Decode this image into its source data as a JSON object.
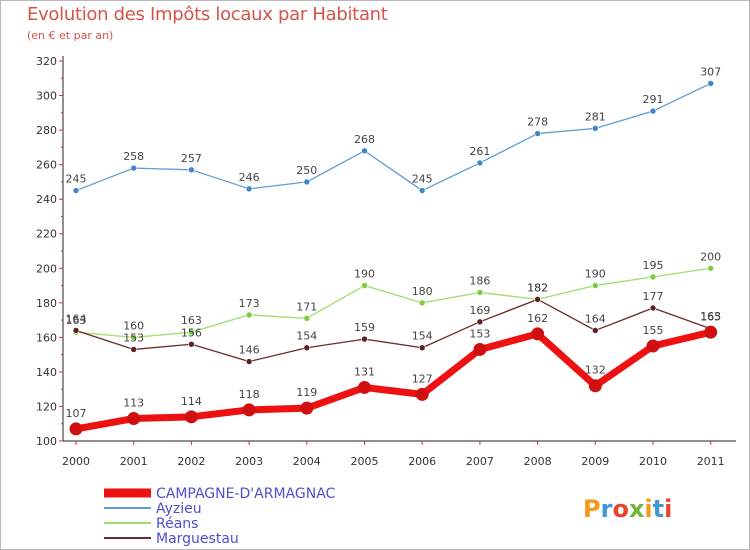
{
  "header": {
    "title": "Evolution des Impôts locaux par Habitant",
    "subtitle": "(en € et par an)"
  },
  "logo": {
    "text": "Proxiti",
    "colors": [
      "#f29a1a",
      "#3f98d8",
      "#e7452c",
      "#71b53b"
    ]
  },
  "chart_data": {
    "type": "line",
    "title": "Evolution des Impôts locaux par Habitant",
    "subtitle": "(en € et par an)",
    "x": [
      "2000",
      "2001",
      "2002",
      "2003",
      "2004",
      "2005",
      "2006",
      "2007",
      "2008",
      "2009",
      "2010",
      "2011"
    ],
    "y_ticks": [
      "100",
      "120",
      "140",
      "160",
      "180",
      "200",
      "220",
      "240",
      "260",
      "280",
      "300",
      "320"
    ],
    "ylim": [
      100,
      320
    ],
    "grid": false,
    "legend_position": "bottom-left",
    "series": [
      {
        "name": "CAMPAGNE-D'ARMAGNAC",
        "color": "#ee1111",
        "marker": "#d01010",
        "emphasis": true,
        "values": [
          107,
          113,
          114,
          118,
          119,
          131,
          127,
          153,
          162,
          132,
          155,
          163
        ]
      },
      {
        "name": "Ayzieu",
        "color": "#5f9cd4",
        "marker": "#3f87c9",
        "emphasis": false,
        "values": [
          245,
          258,
          257,
          246,
          250,
          268,
          245,
          261,
          278,
          281,
          291,
          307
        ]
      },
      {
        "name": "Réans",
        "color": "#9ede6a",
        "marker": "#7ccc3f",
        "emphasis": false,
        "values": [
          163,
          160,
          163,
          173,
          171,
          190,
          180,
          186,
          182,
          190,
          195,
          200
        ]
      },
      {
        "name": "Marguestau",
        "color": "#6e2a2a",
        "marker": "#5e1f1f",
        "emphasis": false,
        "values": [
          164,
          153,
          156,
          146,
          154,
          159,
          154,
          169,
          182,
          164,
          177,
          165
        ]
      }
    ]
  }
}
